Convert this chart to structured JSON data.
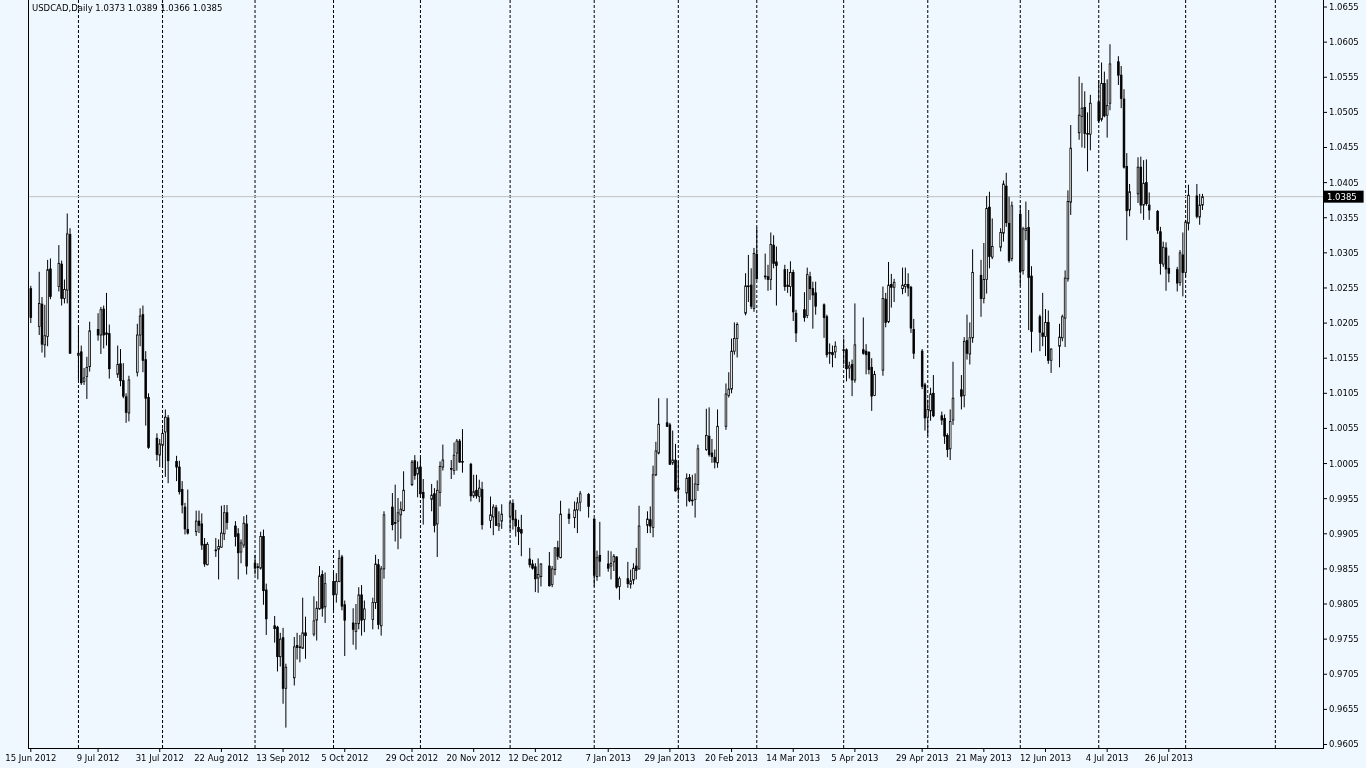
{
  "chart_data": {
    "type": "candlestick",
    "title": "USDCAD,Daily 1.0373 1.0389 1.0366 1.0385",
    "color": "#000000",
    "x": [
      "2012-06-15",
      "2012-06-18",
      "2012-06-19",
      "2012-06-20",
      "2012-06-21",
      "2012-06-22",
      "2012-06-25",
      "2012-06-26",
      "2012-06-27",
      "2012-06-28",
      "2012-06-29",
      "2012-07-02",
      "2012-07-03",
      "2012-07-04",
      "2012-07-05",
      "2012-07-06",
      "2012-07-09",
      "2012-07-10",
      "2012-07-11",
      "2012-07-12",
      "2012-07-13",
      "2012-07-16",
      "2012-07-17",
      "2012-07-18",
      "2012-07-19",
      "2012-07-20",
      "2012-07-23",
      "2012-07-24",
      "2012-07-25",
      "2012-07-26",
      "2012-07-27",
      "2012-07-30",
      "2012-07-31",
      "2012-08-01",
      "2012-08-02",
      "2012-08-03",
      "2012-08-06",
      "2012-08-07",
      "2012-08-08",
      "2012-08-09",
      "2012-08-10",
      "2012-08-13",
      "2012-08-14",
      "2012-08-15",
      "2012-08-16",
      "2012-08-17",
      "2012-08-20",
      "2012-08-21",
      "2012-08-22",
      "2012-08-23",
      "2012-08-24",
      "2012-08-27",
      "2012-08-28",
      "2012-08-29",
      "2012-08-30",
      "2012-08-31",
      "2012-09-03",
      "2012-09-04",
      "2012-09-05",
      "2012-09-06",
      "2012-09-07",
      "2012-09-10",
      "2012-09-11",
      "2012-09-12",
      "2012-09-13",
      "2012-09-14",
      "2012-09-17",
      "2012-09-18",
      "2012-09-19",
      "2012-09-20",
      "2012-09-21",
      "2012-09-24",
      "2012-09-25",
      "2012-09-26",
      "2012-09-27",
      "2012-09-28",
      "2012-10-01",
      "2012-10-02",
      "2012-10-03",
      "2012-10-04",
      "2012-10-05",
      "2012-10-08",
      "2012-10-09",
      "2012-10-10",
      "2012-10-11",
      "2012-10-12",
      "2012-10-15",
      "2012-10-16",
      "2012-10-17",
      "2012-10-18",
      "2012-10-19",
      "2012-10-22",
      "2012-10-23",
      "2012-10-24",
      "2012-10-25",
      "2012-10-26",
      "2012-10-29",
      "2012-10-30",
      "2012-10-31",
      "2012-11-01",
      "2012-11-02",
      "2012-11-05",
      "2012-11-06",
      "2012-11-07",
      "2012-11-08",
      "2012-11-09",
      "2012-11-12",
      "2012-11-13",
      "2012-11-14",
      "2012-11-15",
      "2012-11-16",
      "2012-11-19",
      "2012-11-20",
      "2012-11-21",
      "2012-11-22",
      "2012-11-23",
      "2012-11-26",
      "2012-11-27",
      "2012-11-28",
      "2012-11-29",
      "2012-11-30",
      "2012-12-03",
      "2012-12-04",
      "2012-12-05",
      "2012-12-06",
      "2012-12-07",
      "2012-12-10",
      "2012-12-11",
      "2012-12-12",
      "2012-12-13",
      "2012-12-14",
      "2012-12-17",
      "2012-12-18",
      "2012-12-19",
      "2012-12-20",
      "2012-12-21",
      "2012-12-24",
      "2012-12-26",
      "2012-12-27",
      "2012-12-28",
      "2012-12-31",
      "2013-01-02",
      "2013-01-03",
      "2013-01-04",
      "2013-01-07",
      "2013-01-08",
      "2013-01-09",
      "2013-01-10",
      "2013-01-11",
      "2013-01-14",
      "2013-01-15",
      "2013-01-16",
      "2013-01-17",
      "2013-01-18",
      "2013-01-21",
      "2013-01-22",
      "2013-01-23",
      "2013-01-24",
      "2013-01-25",
      "2013-01-28",
      "2013-01-29",
      "2013-01-30",
      "2013-01-31",
      "2013-02-01",
      "2013-02-04",
      "2013-02-05",
      "2013-02-06",
      "2013-02-07",
      "2013-02-08",
      "2013-02-11",
      "2013-02-12",
      "2013-02-13",
      "2013-02-14",
      "2013-02-15",
      "2013-02-18",
      "2013-02-19",
      "2013-02-20",
      "2013-02-21",
      "2013-02-22",
      "2013-02-25",
      "2013-02-26",
      "2013-02-27",
      "2013-02-28",
      "2013-03-01",
      "2013-03-04",
      "2013-03-05",
      "2013-03-06",
      "2013-03-07",
      "2013-03-08",
      "2013-03-11",
      "2013-03-12",
      "2013-03-13",
      "2013-03-14",
      "2013-03-15",
      "2013-03-18",
      "2013-03-19",
      "2013-03-20",
      "2013-03-21",
      "2013-03-22",
      "2013-03-25",
      "2013-03-26",
      "2013-03-27",
      "2013-03-28",
      "2013-03-29",
      "2013-04-01",
      "2013-04-02",
      "2013-04-03",
      "2013-04-04",
      "2013-04-05",
      "2013-04-08",
      "2013-04-09",
      "2013-04-10",
      "2013-04-11",
      "2013-04-12",
      "2013-04-15",
      "2013-04-16",
      "2013-04-17",
      "2013-04-18",
      "2013-04-19",
      "2013-04-22",
      "2013-04-23",
      "2013-04-24",
      "2013-04-25",
      "2013-04-26",
      "2013-04-29",
      "2013-04-30",
      "2013-05-01",
      "2013-05-02",
      "2013-05-03",
      "2013-05-06",
      "2013-05-07",
      "2013-05-08",
      "2013-05-09",
      "2013-05-10",
      "2013-05-13",
      "2013-05-14",
      "2013-05-15",
      "2013-05-16",
      "2013-05-17",
      "2013-05-20",
      "2013-05-21",
      "2013-05-22",
      "2013-05-23",
      "2013-05-24",
      "2013-05-27",
      "2013-05-28",
      "2013-05-29",
      "2013-05-30",
      "2013-05-31",
      "2013-06-03",
      "2013-06-04",
      "2013-06-05",
      "2013-06-06",
      "2013-06-07",
      "2013-06-10",
      "2013-06-11",
      "2013-06-12",
      "2013-06-13",
      "2013-06-14",
      "2013-06-17",
      "2013-06-18",
      "2013-06-19",
      "2013-06-20",
      "2013-06-21",
      "2013-06-24",
      "2013-06-25",
      "2013-06-26",
      "2013-06-27",
      "2013-06-28",
      "2013-07-01",
      "2013-07-02",
      "2013-07-03",
      "2013-07-04",
      "2013-07-05",
      "2013-07-08",
      "2013-07-09",
      "2013-07-10",
      "2013-07-11",
      "2013-07-12",
      "2013-07-15",
      "2013-07-16",
      "2013-07-17",
      "2013-07-18",
      "2013-07-19",
      "2013-07-22",
      "2013-07-23",
      "2013-07-24",
      "2013-07-25",
      "2013-07-26",
      "2013-07-29",
      "2013-07-30",
      "2013-07-31",
      "2013-08-01",
      "2013-08-02",
      "2013-08-05",
      "2013-08-06",
      "2013-08-07"
    ],
    "ohlc": [
      [
        1.0254,
        1.0258,
        1.0205,
        1.0213
      ],
      [
        1.02,
        1.0278,
        1.0188,
        1.0233
      ],
      [
        1.0232,
        1.0242,
        1.0163,
        1.0175
      ],
      [
        1.0174,
        1.0231,
        1.0156,
        1.0187
      ],
      [
        1.0186,
        1.0295,
        1.0172,
        1.0281
      ],
      [
        1.0282,
        1.0297,
        1.0239,
        1.0243
      ],
      [
        1.0257,
        1.0316,
        1.025,
        1.029
      ],
      [
        1.0289,
        1.0294,
        1.023,
        1.024
      ],
      [
        1.024,
        1.0267,
        1.0233,
        1.0253
      ],
      [
        1.0252,
        1.0361,
        1.0233,
        1.0332
      ],
      [
        1.0331,
        1.034,
        1.0162,
        1.0162
      ],
      [
        1.0159,
        1.02,
        1.0124,
        1.0162
      ],
      [
        1.0164,
        1.0173,
        1.0117,
        1.012
      ],
      [
        1.0122,
        1.0141,
        1.0117,
        1.0127
      ],
      [
        1.0129,
        1.0157,
        1.0097,
        1.0142
      ],
      [
        1.0143,
        1.0207,
        1.0136,
        1.0194
      ],
      [
        1.0196,
        1.0219,
        1.018,
        1.0188
      ],
      [
        1.0188,
        1.0228,
        1.0161,
        1.0224
      ],
      [
        1.0225,
        1.023,
        1.0169,
        1.0188
      ],
      [
        1.0191,
        1.0248,
        1.0173,
        1.0189
      ],
      [
        1.019,
        1.0203,
        1.0126,
        1.014
      ],
      [
        1.0132,
        1.0173,
        1.0127,
        1.0146
      ],
      [
        1.0147,
        1.0168,
        1.0115,
        1.0123
      ],
      [
        1.0123,
        1.0148,
        1.0098,
        1.0101
      ],
      [
        1.01,
        1.0105,
        1.0063,
        1.0078
      ],
      [
        1.0077,
        1.013,
        1.0065,
        1.0124
      ],
      [
        1.0135,
        1.0204,
        1.0129,
        1.0188
      ],
      [
        1.0188,
        1.0226,
        1.0172,
        1.0215
      ],
      [
        1.0217,
        1.023,
        1.0135,
        1.0152
      ],
      [
        1.0153,
        1.0165,
        1.0059,
        1.0098
      ],
      [
        1.0099,
        1.0105,
        1.0026,
        1.0028
      ],
      [
        1.0041,
        1.0048,
        1.0009,
        1.0018
      ],
      [
        1.0017,
        1.004,
        1.0,
        1.0033
      ],
      [
        1.0031,
        1.0055,
        0.9999,
        1.0048
      ],
      [
        1.005,
        1.0082,
        0.9986,
        1.0071
      ],
      [
        1.007,
        1.0074,
        0.9977,
        1.0009
      ],
      [
        1.0008,
        1.0016,
        0.998,
        1.0
      ],
      [
        1.0,
        1.0009,
        0.9961,
        0.9965
      ],
      [
        0.9968,
        0.998,
        0.9934,
        0.9946
      ],
      [
        0.9943,
        0.9949,
        0.9904,
        0.9912
      ],
      [
        0.9911,
        0.9968,
        0.9904,
        0.9906
      ],
      [
        0.9908,
        0.9938,
        0.9902,
        0.9923
      ],
      [
        0.9923,
        0.9938,
        0.9906,
        0.9917
      ],
      [
        0.9919,
        0.9934,
        0.9882,
        0.9889
      ],
      [
        0.989,
        0.9899,
        0.9858,
        0.9862
      ],
      [
        0.9861,
        0.9893,
        0.986,
        0.989
      ],
      [
        0.9881,
        0.9899,
        0.9872,
        0.9882
      ],
      [
        0.9883,
        0.9897,
        0.984,
        0.9887
      ],
      [
        0.9886,
        0.9945,
        0.9885,
        0.9906
      ],
      [
        0.9905,
        0.9946,
        0.9896,
        0.9935
      ],
      [
        0.9935,
        0.9946,
        0.9911,
        0.9921
      ],
      [
        0.9916,
        0.9923,
        0.9887,
        0.9901
      ],
      [
        0.9905,
        0.9913,
        0.984,
        0.9878
      ],
      [
        0.9879,
        0.9897,
        0.9863,
        0.9892
      ],
      [
        0.9889,
        0.993,
        0.9885,
        0.992
      ],
      [
        0.9919,
        0.9932,
        0.9847,
        0.9859
      ],
      [
        0.9863,
        0.9875,
        0.9847,
        0.9856
      ],
      [
        0.9858,
        0.9863,
        0.984,
        0.9857
      ],
      [
        0.9856,
        0.9908,
        0.9854,
        0.9901
      ],
      [
        0.9901,
        0.9911,
        0.9804,
        0.9824
      ],
      [
        0.9825,
        0.9834,
        0.9761,
        0.9784
      ],
      [
        0.9774,
        0.9788,
        0.975,
        0.977
      ],
      [
        0.9772,
        0.9774,
        0.9709,
        0.973
      ],
      [
        0.973,
        0.9764,
        0.9716,
        0.9755
      ],
      [
        0.9757,
        0.9771,
        0.9663,
        0.9685
      ],
      [
        0.9685,
        0.972,
        0.9629,
        0.9715
      ],
      [
        0.97,
        0.9758,
        0.9689,
        0.9744
      ],
      [
        0.9746,
        0.9764,
        0.9726,
        0.9743
      ],
      [
        0.9744,
        0.9761,
        0.9722,
        0.9743
      ],
      [
        0.9742,
        0.9814,
        0.9741,
        0.9764
      ],
      [
        0.9764,
        0.9787,
        0.9727,
        0.976
      ],
      [
        0.9762,
        0.9816,
        0.9759,
        0.9781
      ],
      [
        0.9782,
        0.9809,
        0.9753,
        0.9799
      ],
      [
        0.9798,
        0.9859,
        0.9797,
        0.9845
      ],
      [
        0.9847,
        0.9853,
        0.9787,
        0.9799
      ],
      [
        0.9801,
        0.985,
        0.9778,
        0.9834
      ],
      [
        0.9837,
        0.9851,
        0.9792,
        0.9818
      ],
      [
        0.9819,
        0.9849,
        0.9807,
        0.9837
      ],
      [
        0.9837,
        0.9882,
        0.9836,
        0.987
      ],
      [
        0.9872,
        0.9875,
        0.9796,
        0.9802
      ],
      [
        0.9804,
        0.981,
        0.9731,
        0.9782
      ],
      [
        0.9778,
        0.9799,
        0.9747,
        0.9769
      ],
      [
        0.9766,
        0.9805,
        0.974,
        0.9777
      ],
      [
        0.9777,
        0.9829,
        0.9769,
        0.9818
      ],
      [
        0.9818,
        0.9832,
        0.976,
        0.9782
      ],
      [
        0.9783,
        0.981,
        0.9765,
        0.9798
      ],
      [
        0.9783,
        0.9814,
        0.9769,
        0.9807
      ],
      [
        0.9807,
        0.9875,
        0.9798,
        0.9862
      ],
      [
        0.9861,
        0.9869,
        0.9769,
        0.9776
      ],
      [
        0.9774,
        0.9859,
        0.976,
        0.9855
      ],
      [
        0.9855,
        0.9937,
        0.9841,
        0.9932
      ],
      [
        0.9943,
        0.9963,
        0.991,
        0.9918
      ],
      [
        0.9921,
        0.9975,
        0.9894,
        0.992
      ],
      [
        0.9923,
        0.9956,
        0.9883,
        0.9935
      ],
      [
        0.9932,
        0.9951,
        0.9898,
        0.994
      ],
      [
        0.9938,
        0.9994,
        0.9937,
        0.9967
      ],
      [
        0.9975,
        1.001,
        0.9973,
        1.0007
      ],
      [
        1.0009,
        1.0017,
        0.9982,
        0.9988
      ],
      [
        0.999,
        1.0008,
        0.9957,
        0.9999
      ],
      [
        1.0,
        1.0013,
        0.9956,
        0.9962
      ],
      [
        0.9964,
        0.9983,
        0.9918,
        0.9956
      ],
      [
        0.9954,
        0.9976,
        0.9937,
        0.996
      ],
      [
        0.9962,
        0.997,
        0.9907,
        0.9917
      ],
      [
        0.9919,
        0.9981,
        0.9872,
        0.9967
      ],
      [
        0.9964,
        1.0008,
        0.9944,
        1.0001
      ],
      [
        1.0,
        1.0032,
        0.9995,
        1.001
      ],
      [
        0.9998,
        1.001,
        0.9983,
        0.9997
      ],
      [
        0.9995,
        1.0035,
        0.9989,
        1.0017
      ],
      [
        1.002,
        1.004,
        0.9995,
        1.0037
      ],
      [
        1.0037,
        1.004,
        1.0006,
        1.0007
      ],
      [
        1.0008,
        1.0054,
        0.9992,
        1.0007
      ],
      [
        1.0004,
        1.0006,
        0.9951,
        0.9959
      ],
      [
        0.9959,
        0.9989,
        0.9956,
        0.9965
      ],
      [
        0.9967,
        0.9989,
        0.9955,
        0.9959
      ],
      [
        0.9958,
        0.9982,
        0.995,
        0.997
      ],
      [
        0.9968,
        0.9979,
        0.9911,
        0.9918
      ],
      [
        0.9924,
        0.9958,
        0.9913,
        0.9932
      ],
      [
        0.9929,
        0.9947,
        0.9903,
        0.9943
      ],
      [
        0.9942,
        0.9946,
        0.9916,
        0.9917
      ],
      [
        0.9916,
        0.9937,
        0.9909,
        0.9919
      ],
      [
        0.9923,
        0.9947,
        0.9912,
        0.9933
      ],
      [
        0.993,
        0.9951,
        0.9909,
        0.9949
      ],
      [
        0.9948,
        0.9954,
        0.9911,
        0.9925
      ],
      [
        0.9926,
        0.9939,
        0.9901,
        0.9916
      ],
      [
        0.9914,
        0.9925,
        0.9889,
        0.9908
      ],
      [
        0.9911,
        0.9932,
        0.9873,
        0.9906
      ],
      [
        0.9869,
        0.9885,
        0.9857,
        0.9861
      ],
      [
        0.9862,
        0.9868,
        0.9854,
        0.9856
      ],
      [
        0.9858,
        0.9863,
        0.9822,
        0.9841
      ],
      [
        0.9842,
        0.987,
        0.9821,
        0.9847
      ],
      [
        0.9844,
        0.9863,
        0.983,
        0.9862
      ],
      [
        0.9859,
        0.9879,
        0.983,
        0.9831
      ],
      [
        0.9833,
        0.9859,
        0.9829,
        0.9855
      ],
      [
        0.9854,
        0.9886,
        0.9846,
        0.9885
      ],
      [
        0.9885,
        0.9895,
        0.9868,
        0.9873
      ],
      [
        0.9871,
        0.9952,
        0.987,
        0.9933
      ],
      [
        0.9933,
        0.9941,
        0.9919,
        0.9927
      ],
      [
        0.9928,
        0.9951,
        0.9913,
        0.9939
      ],
      [
        0.9939,
        0.9957,
        0.9906,
        0.9949
      ],
      [
        0.995,
        0.9966,
        0.9937,
        0.9962
      ],
      [
        0.9961,
        0.9963,
        0.9928,
        0.9944
      ],
      [
        0.9926,
        0.9927,
        0.983,
        0.9846
      ],
      [
        0.9844,
        0.9881,
        0.9838,
        0.9871
      ],
      [
        0.9874,
        0.9922,
        0.9844,
        0.9866
      ],
      [
        0.9862,
        0.9881,
        0.9851,
        0.9856
      ],
      [
        0.9859,
        0.988,
        0.984,
        0.9863
      ],
      [
        0.9865,
        0.9876,
        0.9852,
        0.9873
      ],
      [
        0.9872,
        0.9873,
        0.9827,
        0.9829
      ],
      [
        0.983,
        0.9844,
        0.9811,
        0.9841
      ],
      [
        0.9841,
        0.9865,
        0.9828,
        0.9834
      ],
      [
        0.9833,
        0.9854,
        0.9827,
        0.9838
      ],
      [
        0.9839,
        0.9863,
        0.9833,
        0.9856
      ],
      [
        0.9859,
        0.9885,
        0.984,
        0.9853
      ],
      [
        0.9855,
        0.9945,
        0.9854,
        0.9916
      ],
      [
        0.9917,
        0.9937,
        0.9906,
        0.9926
      ],
      [
        0.9925,
        0.9944,
        0.9906,
        0.9916
      ],
      [
        0.9914,
        1.0002,
        0.99,
        0.9989
      ],
      [
        0.9989,
        1.0036,
        0.9987,
        1.0023
      ],
      [
        1.002,
        1.0098,
        1.0018,
        1.0061
      ],
      [
        1.0063,
        1.0098,
        1.0057,
        1.0058
      ],
      [
        1.006,
        1.0063,
        1.0003,
        1.0004
      ],
      [
        1.0006,
        1.0052,
        1.0003,
        1.001
      ],
      [
        1.001,
        1.0033,
        0.9965,
        0.9966
      ],
      [
        0.997,
        1.0008,
        0.9954,
        0.9968
      ],
      [
        0.9963,
        0.9991,
        0.9944,
        0.9984
      ],
      [
        0.9985,
        0.999,
        0.995,
        0.9952
      ],
      [
        0.9953,
        0.9989,
        0.9945,
        0.9952
      ],
      [
        0.9954,
        0.9991,
        0.9928,
        0.9976
      ],
      [
        0.9975,
        1.0032,
        0.9966,
        1.0026
      ],
      [
        1.0025,
        1.0083,
        1.0023,
        1.0045
      ],
      [
        1.0044,
        1.0085,
        1.0015,
        1.0018
      ],
      [
        1.002,
        1.004,
        1.0006,
        1.0015
      ],
      [
        1.0014,
        1.0025,
        0.9998,
        1.0007
      ],
      [
        1.0006,
        1.0082,
        0.9999,
        1.0058
      ],
      [
        1.0058,
        1.0119,
        1.0053,
        1.0104
      ],
      [
        1.0102,
        1.0135,
        1.0099,
        1.0111
      ],
      [
        1.0111,
        1.0183,
        1.0105,
        1.0165
      ],
      [
        1.0165,
        1.0206,
        1.016,
        1.0183
      ],
      [
        1.0183,
        1.0206,
        1.0156,
        1.0203
      ],
      [
        1.0219,
        1.0276,
        1.0216,
        1.0258
      ],
      [
        1.0257,
        1.0302,
        1.0235,
        1.0258
      ],
      [
        1.0259,
        1.0283,
        1.0225,
        1.0229
      ],
      [
        1.0226,
        1.0312,
        1.0221,
        1.0304
      ],
      [
        1.0303,
        1.0341,
        1.0267,
        1.0268
      ],
      [
        1.0272,
        1.0304,
        1.0267,
        1.0271
      ],
      [
        1.0271,
        1.0288,
        1.0251,
        1.0267
      ],
      [
        1.0267,
        1.0334,
        1.0252,
        1.0317
      ],
      [
        1.0316,
        1.033,
        1.0283,
        1.029
      ],
      [
        1.0292,
        1.0314,
        1.023,
        1.0287
      ],
      [
        1.0281,
        1.0288,
        1.0251,
        1.0257
      ],
      [
        1.0259,
        1.0282,
        1.0248,
        1.0257
      ],
      [
        1.0257,
        1.0293,
        1.0243,
        1.0277
      ],
      [
        1.0277,
        1.0281,
        1.0208,
        1.0221
      ],
      [
        1.0219,
        1.0224,
        1.0178,
        1.0191
      ],
      [
        1.0224,
        1.0249,
        1.0207,
        1.0213
      ],
      [
        1.0216,
        1.0284,
        1.0212,
        1.0274
      ],
      [
        1.0271,
        1.0278,
        1.0238,
        1.0254
      ],
      [
        1.0254,
        1.0264,
        1.0197,
        1.0245
      ],
      [
        1.0248,
        1.0264,
        1.0217,
        1.0229
      ],
      [
        1.0231,
        1.0233,
        1.0184,
        1.0213
      ],
      [
        1.0214,
        1.0217,
        1.0156,
        1.016
      ],
      [
        1.0163,
        1.0176,
        1.0147,
        1.0162
      ],
      [
        1.0163,
        1.0173,
        1.0142,
        1.016
      ],
      [
        1.0164,
        1.0179,
        1.0155,
        1.0172
      ],
      [
        1.0167,
        1.0183,
        1.0146,
        1.0166
      ],
      [
        1.0167,
        1.0169,
        1.0122,
        1.014
      ],
      [
        1.0141,
        1.015,
        1.0126,
        1.0144
      ],
      [
        1.0146,
        1.0153,
        1.0101,
        1.0124
      ],
      [
        1.0124,
        1.0233,
        1.012,
        1.0174
      ],
      [
        1.0167,
        1.0213,
        1.016,
        1.0162
      ],
      [
        1.0165,
        1.0175,
        1.0132,
        1.016
      ],
      [
        1.0163,
        1.0165,
        1.0132,
        1.0139
      ],
      [
        1.0142,
        1.0155,
        1.008,
        1.0101
      ],
      [
        1.0102,
        1.0137,
        1.0101,
        1.0132
      ],
      [
        1.0138,
        1.0257,
        1.013,
        1.024
      ],
      [
        1.0239,
        1.0248,
        1.0199,
        1.0206
      ],
      [
        1.0207,
        1.0292,
        1.0205,
        1.0259
      ],
      [
        1.026,
        1.0275,
        1.0227,
        1.0256
      ],
      [
        1.0256,
        1.0268,
        1.0235,
        1.0263
      ],
      [
        1.0254,
        1.0284,
        1.0246,
        1.0259
      ],
      [
        1.0257,
        1.0284,
        1.0248,
        1.026
      ],
      [
        1.026,
        1.0276,
        1.0243,
        1.0255
      ],
      [
        1.0256,
        1.0258,
        1.0191,
        1.0198
      ],
      [
        1.0196,
        1.0211,
        1.0154,
        1.0162
      ],
      [
        1.0165,
        1.0168,
        1.0111,
        1.0115
      ],
      [
        1.0117,
        1.012,
        1.0052,
        1.007
      ],
      [
        1.0071,
        1.0096,
        1.0044,
        1.0082
      ],
      [
        1.008,
        1.0113,
        1.0066,
        1.0104
      ],
      [
        1.0105,
        1.0131,
        1.0071,
        1.0073
      ],
      [
        1.0073,
        1.0079,
        1.006,
        1.0067
      ],
      [
        1.0069,
        1.0075,
        1.0033,
        1.0044
      ],
      [
        1.0045,
        1.0048,
        1.0014,
        1.0025
      ],
      [
        1.0026,
        1.0082,
        1.001,
        1.0065
      ],
      [
        1.0067,
        1.015,
        1.006,
        1.0098
      ],
      [
        1.011,
        1.0131,
        1.0082,
        1.0101
      ],
      [
        1.0102,
        1.0185,
        1.0085,
        1.0179
      ],
      [
        1.018,
        1.0217,
        1.0153,
        1.0162
      ],
      [
        1.0161,
        1.0206,
        1.0146,
        1.0184
      ],
      [
        1.0184,
        1.031,
        1.0177,
        1.0277
      ],
      [
        1.0273,
        1.0295,
        1.0214,
        1.024
      ],
      [
        1.024,
        1.0319,
        1.0233,
        1.0267
      ],
      [
        1.0267,
        1.0386,
        1.0247,
        1.0368
      ],
      [
        1.037,
        1.0392,
        1.0283,
        1.03
      ],
      [
        1.0299,
        1.0354,
        1.0296,
        1.0314
      ],
      [
        1.0313,
        1.034,
        1.0307,
        1.0334
      ],
      [
        1.0333,
        1.0408,
        1.0321,
        1.0403
      ],
      [
        1.04,
        1.0419,
        1.0342,
        1.0348
      ],
      [
        1.0347,
        1.0385,
        1.0291,
        1.0294
      ],
      [
        1.0297,
        1.0378,
        1.0293,
        1.0372
      ],
      [
        1.036,
        1.0373,
        1.0258,
        1.0278
      ],
      [
        1.028,
        1.0342,
        1.0274,
        1.0339
      ],
      [
        1.0337,
        1.0378,
        1.0323,
        1.034
      ],
      [
        1.0341,
        1.0366,
        1.0195,
        1.027
      ],
      [
        1.0272,
        1.0286,
        1.0163,
        1.0193
      ],
      [
        1.0214,
        1.0217,
        1.0165,
        1.0192
      ],
      [
        1.0191,
        1.0248,
        1.0172,
        1.0186
      ],
      [
        1.0186,
        1.0225,
        1.0158,
        1.0206
      ],
      [
        1.0206,
        1.0223,
        1.0147,
        1.0152
      ],
      [
        1.0152,
        1.0169,
        1.0134,
        1.0168
      ],
      [
        1.0172,
        1.0204,
        1.0142,
        1.0185
      ],
      [
        1.0184,
        1.0217,
        1.0179,
        1.0214
      ],
      [
        1.0212,
        1.028,
        1.0171,
        1.0269
      ],
      [
        1.0268,
        1.0394,
        1.0264,
        1.0378
      ],
      [
        1.0377,
        1.0487,
        1.0359,
        1.0454
      ],
      [
        1.0476,
        1.0556,
        1.0466,
        1.0501
      ],
      [
        1.0499,
        1.0547,
        1.0455,
        1.0511
      ],
      [
        1.0512,
        1.0535,
        1.0454,
        1.0475
      ],
      [
        1.0475,
        1.0505,
        1.0421,
        1.0474
      ],
      [
        1.0474,
        1.053,
        1.0451,
        1.0518
      ],
      [
        1.052,
        1.0551,
        1.049,
        1.0493
      ],
      [
        1.0495,
        1.0576,
        1.0492,
        1.0546
      ],
      [
        1.0546,
        1.0563,
        1.0498,
        1.05
      ],
      [
        1.0501,
        1.0552,
        1.0469,
        1.0515
      ],
      [
        1.0518,
        1.0602,
        1.0508,
        1.0574
      ],
      [
        1.0577,
        1.0585,
        1.0544,
        1.0558
      ],
      [
        1.0558,
        1.0571,
        1.0511,
        1.0525
      ],
      [
        1.0524,
        1.0538,
        1.0425,
        1.0427
      ],
      [
        1.0428,
        1.0447,
        1.0323,
        1.0365
      ],
      [
        1.0366,
        1.0403,
        1.0357,
        1.0392
      ],
      [
        1.0389,
        1.0441,
        1.0376,
        1.0427
      ],
      [
        1.0427,
        1.0442,
        1.0361,
        1.0373
      ],
      [
        1.0373,
        1.0437,
        1.0352,
        1.0404
      ],
      [
        1.0405,
        1.0438,
        1.0372,
        1.0375
      ],
      [
        1.0373,
        1.0391,
        1.0352,
        1.0366
      ],
      [
        1.0364,
        1.0366,
        1.0332,
        1.0337
      ],
      [
        1.0335,
        1.0342,
        1.0274,
        1.029
      ],
      [
        1.0289,
        1.0321,
        1.0285,
        1.0313
      ],
      [
        1.0312,
        1.032,
        1.0251,
        1.0282
      ],
      [
        1.0283,
        1.0301,
        1.0263,
        1.0276
      ],
      [
        1.0281,
        1.0285,
        1.025,
        1.0262
      ],
      [
        1.0263,
        1.0309,
        1.0258,
        1.0305
      ],
      [
        1.0302,
        1.0334,
        1.0243,
        1.0277
      ],
      [
        1.0277,
        1.0352,
        1.0271,
        1.0349
      ],
      [
        1.0347,
        1.0402,
        1.0337,
        1.0387
      ],
      [
        1.0386,
        1.0403,
        1.0354,
        1.0357
      ],
      [
        1.0356,
        1.0389,
        1.0345,
        1.0373
      ],
      [
        1.0373,
        1.0389,
        1.0366,
        1.0385
      ]
    ],
    "xlim": [
      "2012-06-14",
      "2013-09-19"
    ],
    "xticks": [
      {
        "value": "2012-06-15",
        "label": "15 Jun 2012"
      },
      {
        "value": "2012-07-09",
        "label": "9 Jul 2012"
      },
      {
        "value": "2012-07-31",
        "label": "31 Jul 2012"
      },
      {
        "value": "2012-08-22",
        "label": "22 Aug 2012"
      },
      {
        "value": "2012-09-13",
        "label": "13 Sep 2012"
      },
      {
        "value": "2012-10-05",
        "label": "5 Oct 2012"
      },
      {
        "value": "2012-10-29",
        "label": "29 Oct 2012"
      },
      {
        "value": "2012-11-20",
        "label": "20 Nov 2012"
      },
      {
        "value": "2012-12-12",
        "label": "12 Dec 2012"
      },
      {
        "value": "2013-01-07",
        "label": "7 Jan 2013"
      },
      {
        "value": "2013-01-29",
        "label": "29 Jan 2013"
      },
      {
        "value": "2013-02-20",
        "label": "20 Feb 2013"
      },
      {
        "value": "2013-03-14",
        "label": "14 Mar 2013"
      },
      {
        "value": "2013-04-05",
        "label": "5 Apr 2013"
      },
      {
        "value": "2013-04-29",
        "label": "29 Apr 2013"
      },
      {
        "value": "2013-05-21",
        "label": "21 May 2013"
      },
      {
        "value": "2013-06-12",
        "label": "12 Jun 2013"
      },
      {
        "value": "2013-07-04",
        "label": "4 Jul 2013"
      },
      {
        "value": "2013-07-26",
        "label": "26 Jul 2013"
      }
    ],
    "ylim": [
      0.96,
      1.0665
    ],
    "yticks": [
      0.9605,
      0.9655,
      0.9705,
      0.9755,
      0.9805,
      0.9855,
      0.9905,
      0.9955,
      1.0005,
      1.0055,
      1.0105,
      1.0155,
      1.0205,
      1.0255,
      1.0305,
      1.0355,
      1.0405,
      1.0455,
      1.0505,
      1.0555,
      1.0605,
      1.0655
    ],
    "ref_lines": [
      {
        "axis": "x",
        "value": "2012-07-02",
        "color": "#000000",
        "line_style": "dashed"
      },
      {
        "axis": "x",
        "value": "2012-08-01",
        "color": "#000000",
        "line_style": "dashed"
      },
      {
        "axis": "x",
        "value": "2012-09-03",
        "color": "#000000",
        "line_style": "dashed"
      },
      {
        "axis": "x",
        "value": "2012-10-01",
        "color": "#000000",
        "line_style": "dashed"
      },
      {
        "axis": "x",
        "value": "2012-11-01",
        "color": "#000000",
        "line_style": "dashed"
      },
      {
        "axis": "x",
        "value": "2012-12-03",
        "color": "#000000",
        "line_style": "dashed"
      },
      {
        "axis": "x",
        "value": "2013-01-02",
        "color": "#000000",
        "line_style": "dashed"
      },
      {
        "axis": "x",
        "value": "2013-02-01",
        "color": "#000000",
        "line_style": "dashed"
      },
      {
        "axis": "x",
        "value": "2013-03-01",
        "color": "#000000",
        "line_style": "dashed"
      },
      {
        "axis": "x",
        "value": "2013-04-01",
        "color": "#000000",
        "line_style": "dashed"
      },
      {
        "axis": "x",
        "value": "2013-05-01",
        "color": "#000000",
        "line_style": "dashed"
      },
      {
        "axis": "x",
        "value": "2013-06-03",
        "color": "#000000",
        "line_style": "dashed"
      },
      {
        "axis": "x",
        "value": "2013-07-01",
        "color": "#000000",
        "line_style": "dashed"
      },
      {
        "axis": "x",
        "value": "2013-08-01",
        "color": "#000000",
        "line_style": "dashed"
      },
      {
        "axis": "x",
        "value": "2013-09-02",
        "color": "#000000",
        "line_style": "dashed"
      },
      {
        "axis": "y",
        "value": 1.0385,
        "label": "1.0385",
        "color": "#c0c0c0",
        "line_style": "solid"
      }
    ]
  }
}
